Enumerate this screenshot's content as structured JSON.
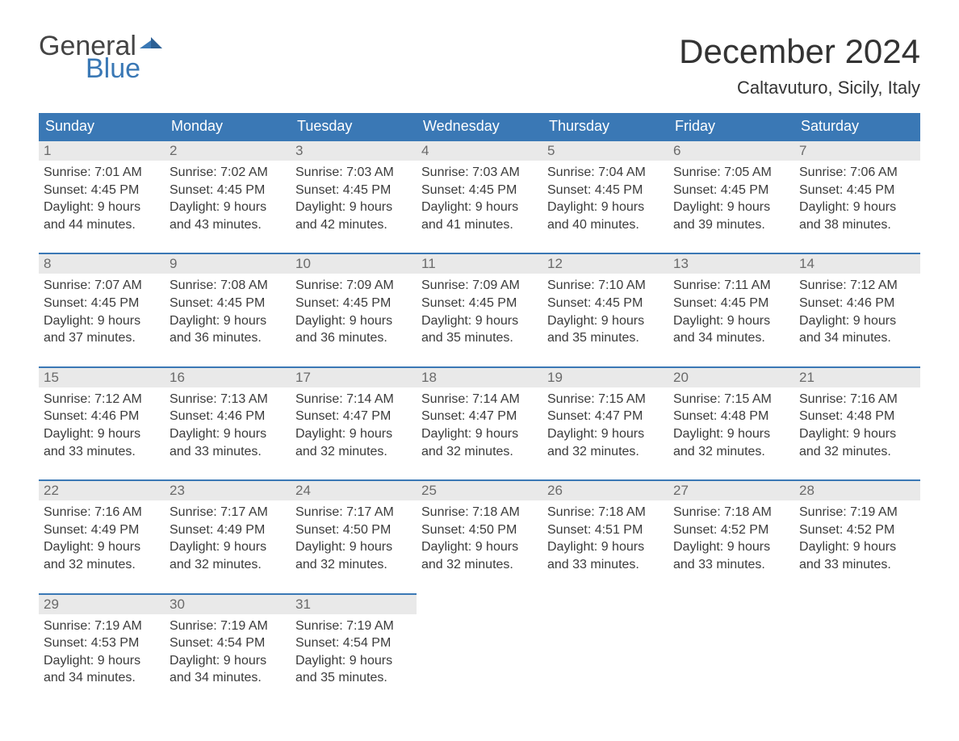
{
  "brand": {
    "part1": "General",
    "part2": "Blue",
    "color_general": "#444444",
    "color_blue": "#3a78b5"
  },
  "title": "December 2024",
  "location": "Caltavuturo, Sicily, Italy",
  "colors": {
    "header_bg": "#3a78b5",
    "header_text": "#ffffff",
    "daynum_bg": "#e9e9e9",
    "daynum_text": "#6a6a6a",
    "body_text": "#3b3b3b",
    "page_bg": "#ffffff",
    "border": "#3a78b5"
  },
  "layout": {
    "columns": 7,
    "rows": 5,
    "cell_font_size_pt": 12
  },
  "weekdays": [
    "Sunday",
    "Monday",
    "Tuesday",
    "Wednesday",
    "Thursday",
    "Friday",
    "Saturday"
  ],
  "weeks": [
    [
      {
        "n": "1",
        "sunrise": "Sunrise: 7:01 AM",
        "sunset": "Sunset: 4:45 PM",
        "d1": "Daylight: 9 hours",
        "d2": "and 44 minutes."
      },
      {
        "n": "2",
        "sunrise": "Sunrise: 7:02 AM",
        "sunset": "Sunset: 4:45 PM",
        "d1": "Daylight: 9 hours",
        "d2": "and 43 minutes."
      },
      {
        "n": "3",
        "sunrise": "Sunrise: 7:03 AM",
        "sunset": "Sunset: 4:45 PM",
        "d1": "Daylight: 9 hours",
        "d2": "and 42 minutes."
      },
      {
        "n": "4",
        "sunrise": "Sunrise: 7:03 AM",
        "sunset": "Sunset: 4:45 PM",
        "d1": "Daylight: 9 hours",
        "d2": "and 41 minutes."
      },
      {
        "n": "5",
        "sunrise": "Sunrise: 7:04 AM",
        "sunset": "Sunset: 4:45 PM",
        "d1": "Daylight: 9 hours",
        "d2": "and 40 minutes."
      },
      {
        "n": "6",
        "sunrise": "Sunrise: 7:05 AM",
        "sunset": "Sunset: 4:45 PM",
        "d1": "Daylight: 9 hours",
        "d2": "and 39 minutes."
      },
      {
        "n": "7",
        "sunrise": "Sunrise: 7:06 AM",
        "sunset": "Sunset: 4:45 PM",
        "d1": "Daylight: 9 hours",
        "d2": "and 38 minutes."
      }
    ],
    [
      {
        "n": "8",
        "sunrise": "Sunrise: 7:07 AM",
        "sunset": "Sunset: 4:45 PM",
        "d1": "Daylight: 9 hours",
        "d2": "and 37 minutes."
      },
      {
        "n": "9",
        "sunrise": "Sunrise: 7:08 AM",
        "sunset": "Sunset: 4:45 PM",
        "d1": "Daylight: 9 hours",
        "d2": "and 36 minutes."
      },
      {
        "n": "10",
        "sunrise": "Sunrise: 7:09 AM",
        "sunset": "Sunset: 4:45 PM",
        "d1": "Daylight: 9 hours",
        "d2": "and 36 minutes."
      },
      {
        "n": "11",
        "sunrise": "Sunrise: 7:09 AM",
        "sunset": "Sunset: 4:45 PM",
        "d1": "Daylight: 9 hours",
        "d2": "and 35 minutes."
      },
      {
        "n": "12",
        "sunrise": "Sunrise: 7:10 AM",
        "sunset": "Sunset: 4:45 PM",
        "d1": "Daylight: 9 hours",
        "d2": "and 35 minutes."
      },
      {
        "n": "13",
        "sunrise": "Sunrise: 7:11 AM",
        "sunset": "Sunset: 4:45 PM",
        "d1": "Daylight: 9 hours",
        "d2": "and 34 minutes."
      },
      {
        "n": "14",
        "sunrise": "Sunrise: 7:12 AM",
        "sunset": "Sunset: 4:46 PM",
        "d1": "Daylight: 9 hours",
        "d2": "and 34 minutes."
      }
    ],
    [
      {
        "n": "15",
        "sunrise": "Sunrise: 7:12 AM",
        "sunset": "Sunset: 4:46 PM",
        "d1": "Daylight: 9 hours",
        "d2": "and 33 minutes."
      },
      {
        "n": "16",
        "sunrise": "Sunrise: 7:13 AM",
        "sunset": "Sunset: 4:46 PM",
        "d1": "Daylight: 9 hours",
        "d2": "and 33 minutes."
      },
      {
        "n": "17",
        "sunrise": "Sunrise: 7:14 AM",
        "sunset": "Sunset: 4:47 PM",
        "d1": "Daylight: 9 hours",
        "d2": "and 32 minutes."
      },
      {
        "n": "18",
        "sunrise": "Sunrise: 7:14 AM",
        "sunset": "Sunset: 4:47 PM",
        "d1": "Daylight: 9 hours",
        "d2": "and 32 minutes."
      },
      {
        "n": "19",
        "sunrise": "Sunrise: 7:15 AM",
        "sunset": "Sunset: 4:47 PM",
        "d1": "Daylight: 9 hours",
        "d2": "and 32 minutes."
      },
      {
        "n": "20",
        "sunrise": "Sunrise: 7:15 AM",
        "sunset": "Sunset: 4:48 PM",
        "d1": "Daylight: 9 hours",
        "d2": "and 32 minutes."
      },
      {
        "n": "21",
        "sunrise": "Sunrise: 7:16 AM",
        "sunset": "Sunset: 4:48 PM",
        "d1": "Daylight: 9 hours",
        "d2": "and 32 minutes."
      }
    ],
    [
      {
        "n": "22",
        "sunrise": "Sunrise: 7:16 AM",
        "sunset": "Sunset: 4:49 PM",
        "d1": "Daylight: 9 hours",
        "d2": "and 32 minutes."
      },
      {
        "n": "23",
        "sunrise": "Sunrise: 7:17 AM",
        "sunset": "Sunset: 4:49 PM",
        "d1": "Daylight: 9 hours",
        "d2": "and 32 minutes."
      },
      {
        "n": "24",
        "sunrise": "Sunrise: 7:17 AM",
        "sunset": "Sunset: 4:50 PM",
        "d1": "Daylight: 9 hours",
        "d2": "and 32 minutes."
      },
      {
        "n": "25",
        "sunrise": "Sunrise: 7:18 AM",
        "sunset": "Sunset: 4:50 PM",
        "d1": "Daylight: 9 hours",
        "d2": "and 32 minutes."
      },
      {
        "n": "26",
        "sunrise": "Sunrise: 7:18 AM",
        "sunset": "Sunset: 4:51 PM",
        "d1": "Daylight: 9 hours",
        "d2": "and 33 minutes."
      },
      {
        "n": "27",
        "sunrise": "Sunrise: 7:18 AM",
        "sunset": "Sunset: 4:52 PM",
        "d1": "Daylight: 9 hours",
        "d2": "and 33 minutes."
      },
      {
        "n": "28",
        "sunrise": "Sunrise: 7:19 AM",
        "sunset": "Sunset: 4:52 PM",
        "d1": "Daylight: 9 hours",
        "d2": "and 33 minutes."
      }
    ],
    [
      {
        "n": "29",
        "sunrise": "Sunrise: 7:19 AM",
        "sunset": "Sunset: 4:53 PM",
        "d1": "Daylight: 9 hours",
        "d2": "and 34 minutes."
      },
      {
        "n": "30",
        "sunrise": "Sunrise: 7:19 AM",
        "sunset": "Sunset: 4:54 PM",
        "d1": "Daylight: 9 hours",
        "d2": "and 34 minutes."
      },
      {
        "n": "31",
        "sunrise": "Sunrise: 7:19 AM",
        "sunset": "Sunset: 4:54 PM",
        "d1": "Daylight: 9 hours",
        "d2": "and 35 minutes."
      },
      null,
      null,
      null,
      null
    ]
  ]
}
